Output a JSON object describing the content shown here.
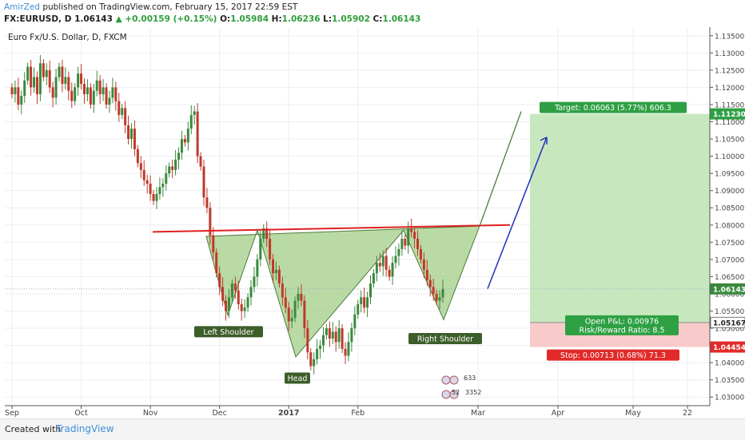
{
  "header": {
    "author": "AmirZed",
    "published_text": "published on TradingView.com, February 15, 2017 22:59 EST",
    "symbol": "FX:EURUSD, D",
    "last": "1.06143",
    "change": "▲ +0.00159 (+0.15%)",
    "o_label": "O:",
    "o": "1.05984",
    "h_label": "H:",
    "h": "1.06236",
    "l_label": "L:",
    "l": "1.05902",
    "c_label": "C:",
    "c": "1.06143"
  },
  "footer": {
    "created_with": "Created with",
    "brand": "TradingView"
  },
  "colors": {
    "up": "#3a8a3e",
    "down": "#c0392b",
    "resistance": "#e02020",
    "pattern_fill": "#a5cf8c",
    "target_zone": "#c7e8bf",
    "stop_zone": "#f8caca",
    "target_badge": "#2ea043",
    "stop_badge": "#e22a2a",
    "arrow": "#1f2fbe"
  },
  "chart_data": {
    "type": "candlestick",
    "title": "Euro Fx/U.S. Dollar, D, FXCM",
    "x_tick_labels": [
      "Sep",
      "Oct",
      "Nov",
      "Dec",
      "2017",
      "Feb",
      "Mar",
      "Apr",
      "May",
      "22"
    ],
    "y_tick_labels": [
      "1.03000",
      "1.03500",
      "1.04000",
      "1.04500",
      "1.05000",
      "1.05500",
      "1.06000",
      "1.06500",
      "1.07000",
      "1.07500",
      "1.08000",
      "1.08500",
      "1.09000",
      "1.09500",
      "1.10000",
      "1.10500",
      "1.11000",
      "1.11500",
      "1.12000",
      "1.12500",
      "1.13000",
      "1.13500"
    ],
    "ylim": [
      1.0275,
      1.1375
    ],
    "grid": true,
    "series_close": [
      1.118,
      1.12,
      1.115,
      1.1175,
      1.122,
      1.126,
      1.12,
      1.123,
      1.118,
      1.127,
      1.123,
      1.125,
      1.12,
      1.117,
      1.123,
      1.126,
      1.121,
      1.123,
      1.119,
      1.116,
      1.12,
      1.124,
      1.121,
      1.118,
      1.12,
      1.115,
      1.119,
      1.122,
      1.118,
      1.12,
      1.115,
      1.117,
      1.12,
      1.116,
      1.112,
      1.114,
      1.109,
      1.105,
      1.108,
      1.102,
      1.098,
      1.096,
      1.093,
      1.092,
      1.089,
      1.087,
      1.089,
      1.091,
      1.092,
      1.095,
      1.097,
      1.096,
      1.099,
      1.101,
      1.105,
      1.104,
      1.108,
      1.112,
      1.113,
      1.1,
      1.097,
      1.088,
      1.085,
      1.077,
      1.072,
      1.066,
      1.062,
      1.058,
      1.055,
      1.059,
      1.063,
      1.061,
      1.057,
      1.055,
      1.056,
      1.059,
      1.062,
      1.065,
      1.07,
      1.076,
      1.079,
      1.076,
      1.07,
      1.066,
      1.067,
      1.063,
      1.059,
      1.056,
      1.052,
      1.053,
      1.058,
      1.06,
      1.058,
      1.05,
      1.043,
      1.039,
      1.041,
      1.044,
      1.045,
      1.048,
      1.05,
      1.047,
      1.049,
      1.046,
      1.05,
      1.044,
      1.042,
      1.046,
      1.05,
      1.054,
      1.057,
      1.059,
      1.056,
      1.059,
      1.063,
      1.066,
      1.069,
      1.068,
      1.071,
      1.067,
      1.065,
      1.069,
      1.071,
      1.073,
      1.076,
      1.074,
      1.079,
      1.078,
      1.076,
      1.073,
      1.07,
      1.067,
      1.064,
      1.062,
      1.06,
      1.058,
      1.059,
      1.0614
    ],
    "resistance_line": {
      "start_price": 1.078,
      "end_price": 1.08
    },
    "labels": [
      "Left Shoulder",
      "Head",
      "Right Shoulder"
    ],
    "price_tags": {
      "target_price": "1.11230",
      "current_price": "1.06143",
      "entry_price": "1.05167",
      "stop_price": "1.04454"
    },
    "position": {
      "target_text": "Target: 0.06063 (5.77%) 606.3",
      "open_pl": "Open P&L: 0.00976",
      "risk_reward": "Risk/Reward Ratio: 8.5",
      "stop_text": "Stop: 0.00713 (0.68%) 71.3",
      "target": 1.1123,
      "entry": 1.05167,
      "stop": 1.04454
    },
    "events": {
      "dividends": "633",
      "earnings": "52",
      "splits": "3352"
    }
  }
}
